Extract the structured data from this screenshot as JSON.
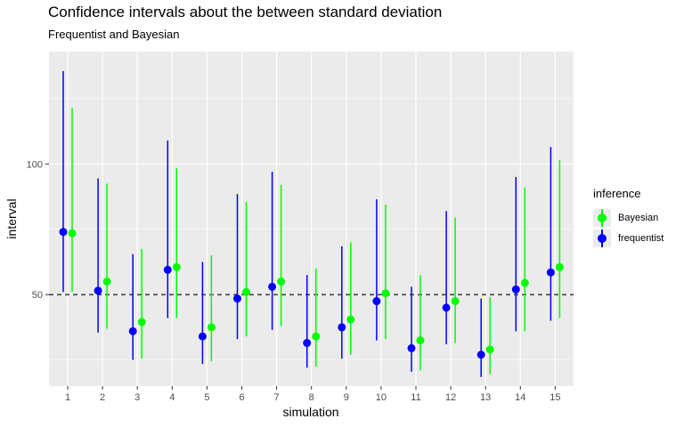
{
  "chart_data": {
    "type": "errorbar",
    "title": "Confidence intervals about the between standard deviation",
    "subtitle": "Frequentist and Bayesian",
    "xlabel": "simulation",
    "ylabel": "interval",
    "categories": [
      "1",
      "2",
      "3",
      "4",
      "5",
      "6",
      "7",
      "8",
      "9",
      "10",
      "11",
      "12",
      "13",
      "14",
      "15"
    ],
    "ylim": [
      15,
      143
    ],
    "yticks": [
      50,
      100
    ],
    "reference_line": {
      "y": 50,
      "style": "dashed"
    },
    "grid": true,
    "legend": {
      "title": "inference",
      "position": "right"
    },
    "series": [
      {
        "name": "Bayesian",
        "color": "#00ff00",
        "point": [
          73.5,
          55,
          39.5,
          60.5,
          37.5,
          51,
          55,
          34,
          40.5,
          50.5,
          32.5,
          47.5,
          29,
          54.5,
          60.5
        ],
        "lower": [
          51,
          37,
          25.5,
          41,
          24.5,
          34,
          38,
          22.5,
          27,
          33,
          21,
          31.5,
          19.5,
          36,
          41
        ],
        "upper": [
          121.5,
          92.5,
          67.5,
          98.5,
          65,
          85.5,
          92,
          60,
          70,
          84.5,
          57.5,
          79.5,
          49,
          91,
          101.5
        ]
      },
      {
        "name": "frequentist",
        "color": "#0000ff",
        "point": [
          74,
          51.5,
          36,
          59.5,
          34,
          48.5,
          53,
          31.5,
          37.5,
          47.5,
          29.5,
          45,
          27,
          52,
          58.5
        ],
        "lower": [
          51,
          35.5,
          25,
          41,
          23.5,
          33,
          36.5,
          22,
          25.5,
          32.5,
          20.5,
          31,
          18.5,
          36,
          40
        ],
        "upper": [
          135.5,
          94.5,
          65.5,
          109,
          62.5,
          88.5,
          97,
          57.5,
          68.5,
          86.5,
          53,
          82,
          48.5,
          95,
          106.5
        ]
      }
    ]
  }
}
